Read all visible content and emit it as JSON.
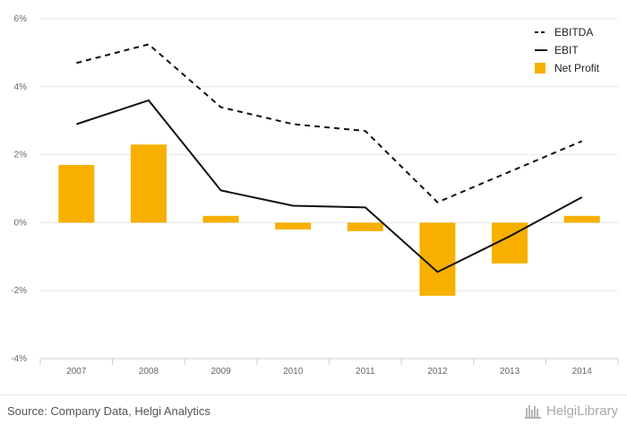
{
  "chart_data": {
    "type": "bar+line",
    "categories": [
      "2007",
      "2008",
      "2009",
      "2010",
      "2011",
      "2012",
      "2013",
      "2014"
    ],
    "series": [
      {
        "name": "EBITDA",
        "kind": "line",
        "style": "dashed",
        "color": "#111111",
        "values": [
          4.7,
          5.25,
          3.4,
          2.9,
          2.7,
          0.6,
          1.5,
          2.4
        ]
      },
      {
        "name": "EBIT",
        "kind": "line",
        "style": "solid",
        "color": "#111111",
        "values": [
          2.9,
          3.6,
          0.95,
          0.5,
          0.45,
          -1.45,
          -0.4,
          0.75
        ]
      },
      {
        "name": "Net Profit",
        "kind": "bar",
        "color": "#f7b000",
        "values": [
          1.7,
          2.3,
          0.2,
          -0.2,
          -0.25,
          -2.15,
          -1.2,
          0.2
        ]
      }
    ],
    "y_ticks": [
      "6%",
      "4%",
      "2%",
      "0%",
      "-2%",
      "-4%"
    ],
    "ylim": [
      -4,
      6
    ],
    "grid": true,
    "legend_position": "top-right"
  },
  "footer": {
    "source": "Source: Company Data, Helgi Analytics",
    "logo_text": "HelgiLibrary"
  }
}
